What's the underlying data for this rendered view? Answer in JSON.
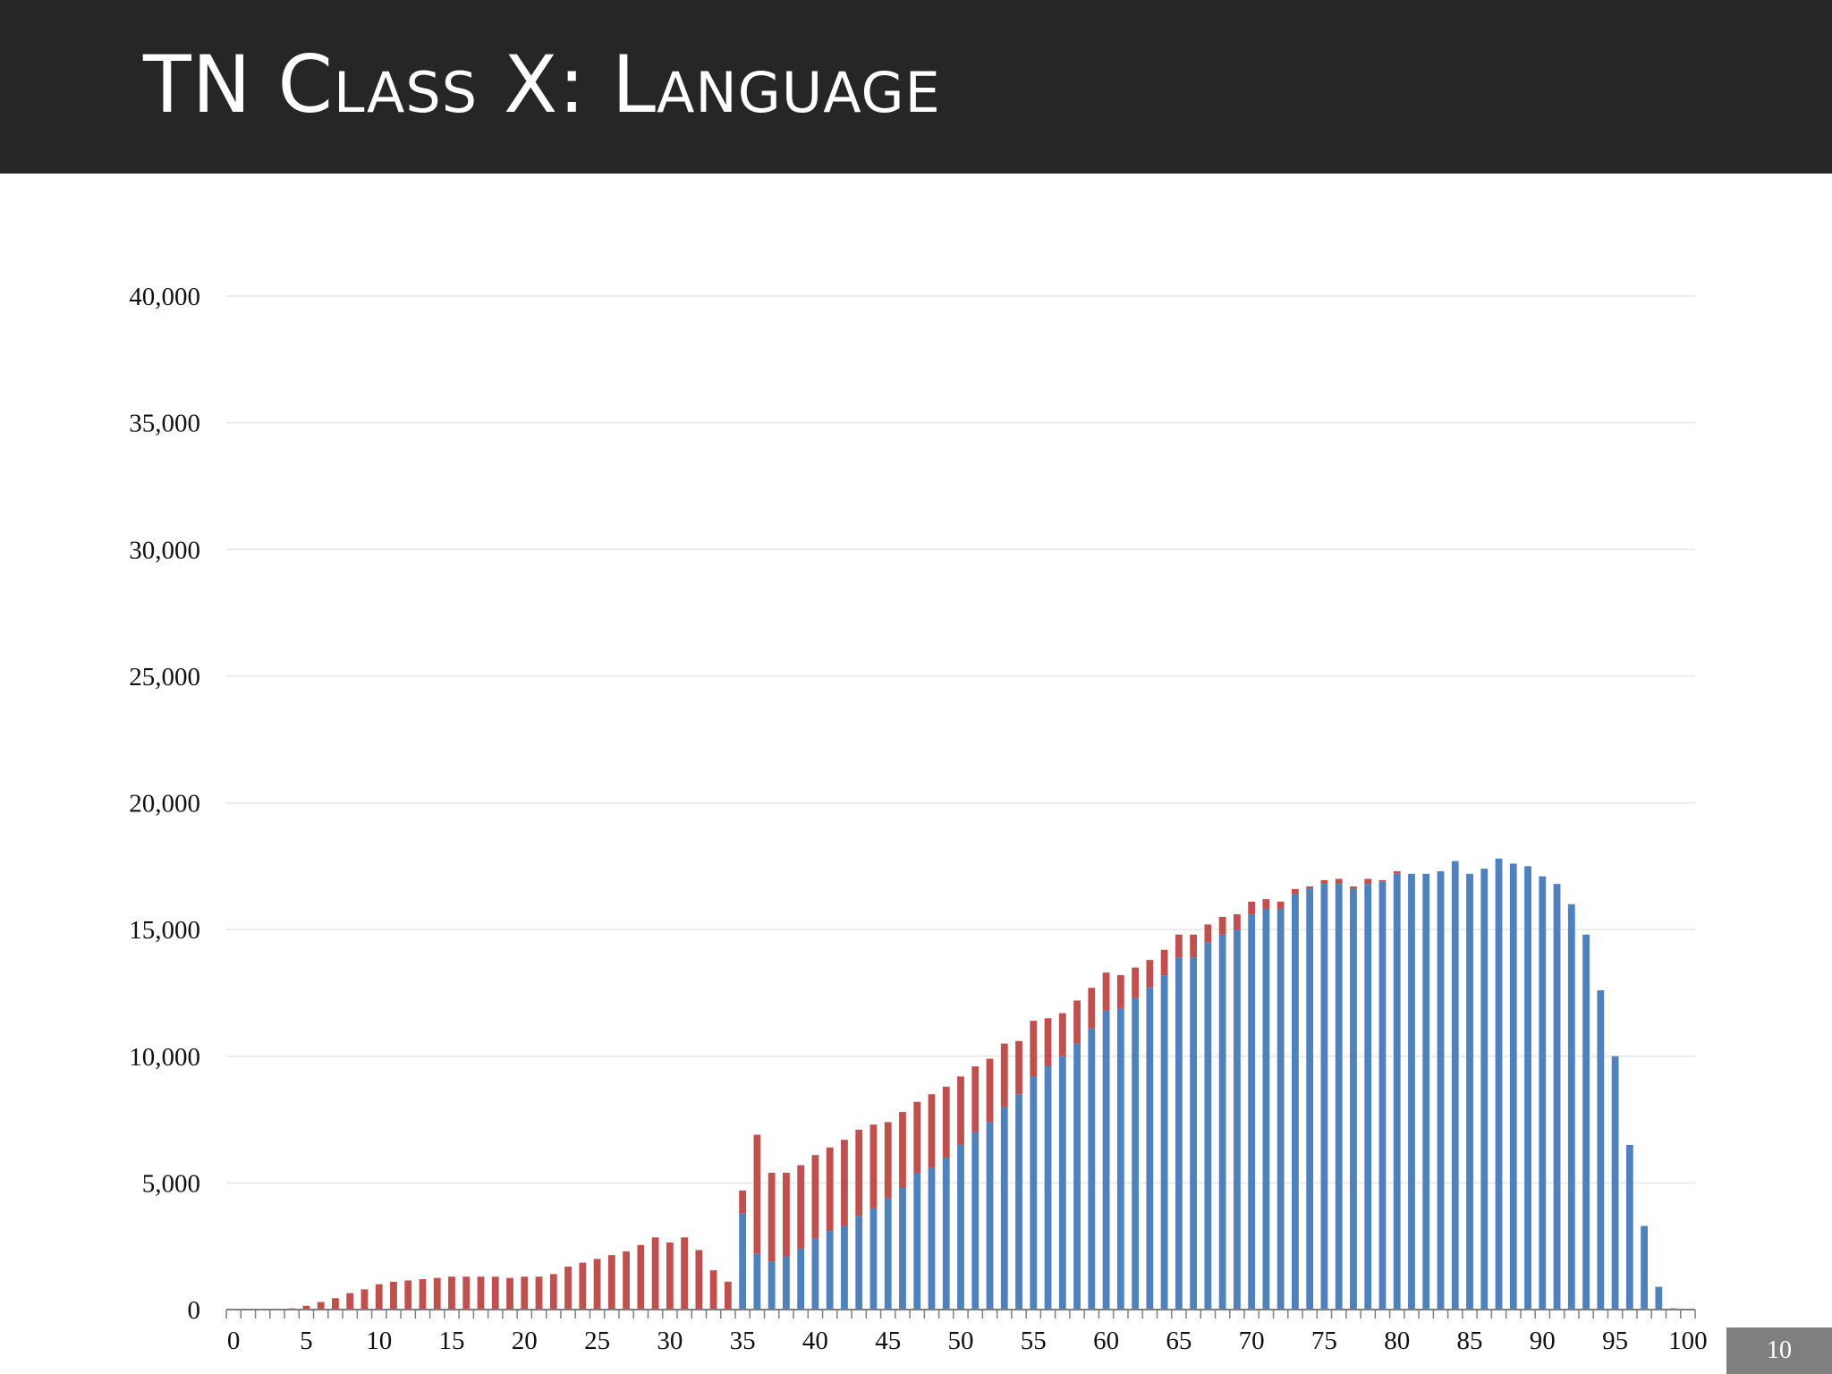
{
  "header": {
    "title": "TN Class X: Language"
  },
  "page_number": "10",
  "colors": {
    "header_bg": "#262626",
    "series_blue": "#4F81BD",
    "series_red": "#C0504D",
    "gridline": "#e6e6e6"
  },
  "chart_data": {
    "type": "bar",
    "stacked": true,
    "x": [
      0,
      1,
      2,
      3,
      4,
      5,
      6,
      7,
      8,
      9,
      10,
      11,
      12,
      13,
      14,
      15,
      16,
      17,
      18,
      19,
      20,
      21,
      22,
      23,
      24,
      25,
      26,
      27,
      28,
      29,
      30,
      31,
      32,
      33,
      34,
      35,
      36,
      37,
      38,
      39,
      40,
      41,
      42,
      43,
      44,
      45,
      46,
      47,
      48,
      49,
      50,
      51,
      52,
      53,
      54,
      55,
      56,
      57,
      58,
      59,
      60,
      61,
      62,
      63,
      64,
      65,
      66,
      67,
      68,
      69,
      70,
      71,
      72,
      73,
      74,
      75,
      76,
      77,
      78,
      79,
      80,
      81,
      82,
      83,
      84,
      85,
      86,
      87,
      88,
      89,
      90,
      91,
      92,
      93,
      94,
      95,
      96,
      97,
      98,
      99,
      100
    ],
    "series": [
      {
        "color": "#4F81BD",
        "values": [
          0,
          0,
          0,
          0,
          0,
          0,
          0,
          0,
          0,
          0,
          0,
          0,
          0,
          0,
          0,
          0,
          0,
          0,
          0,
          0,
          0,
          0,
          0,
          0,
          0,
          0,
          0,
          0,
          0,
          0,
          0,
          0,
          0,
          0,
          0,
          3800,
          2200,
          1900,
          2100,
          2400,
          2800,
          3100,
          3300,
          3700,
          4000,
          4400,
          4800,
          5400,
          5600,
          6000,
          6500,
          7000,
          7400,
          8000,
          8500,
          9200,
          9600,
          10000,
          10500,
          11100,
          11800,
          11900,
          12300,
          12700,
          13200,
          13900,
          13900,
          14500,
          14800,
          15000,
          15600,
          15800,
          15800,
          16400,
          16600,
          16800,
          16800,
          16600,
          16800,
          16900,
          17200,
          17200,
          17200,
          17300,
          17700,
          17200,
          17400,
          17800,
          17600,
          17500,
          17100,
          16800,
          16000,
          14800,
          12600,
          10000,
          6500,
          3300,
          900,
          50,
          0
        ]
      },
      {
        "color": "#C0504D",
        "values": [
          0,
          0,
          0,
          0,
          50,
          150,
          300,
          450,
          650,
          800,
          1000,
          1100,
          1150,
          1200,
          1250,
          1300,
          1300,
          1300,
          1300,
          1250,
          1300,
          1300,
          1400,
          1700,
          1850,
          2000,
          2150,
          2300,
          2550,
          2850,
          2650,
          2850,
          2350,
          1550,
          1100,
          900,
          4700,
          3500,
          3300,
          3300,
          3300,
          3300,
          3400,
          3400,
          3300,
          3000,
          3000,
          2800,
          2900,
          2800,
          2700,
          2600,
          2500,
          2500,
          2100,
          2200,
          1900,
          1700,
          1700,
          1600,
          1500,
          1300,
          1200,
          1100,
          1000,
          900,
          900,
          700,
          700,
          600,
          500,
          400,
          300,
          200,
          100,
          150,
          200,
          100,
          200,
          50,
          100,
          0,
          0,
          0,
          0,
          0,
          0,
          0,
          0,
          0,
          0,
          0,
          0,
          0,
          0,
          0,
          0,
          0,
          0,
          0,
          0
        ]
      }
    ],
    "ylim": [
      0,
      40000
    ],
    "yticks": [
      0,
      5000,
      10000,
      15000,
      20000,
      25000,
      30000,
      35000,
      40000
    ],
    "ytick_labels": [
      "0",
      "5,000",
      "10,000",
      "15,000",
      "20,000",
      "25,000",
      "30,000",
      "35,000",
      "40,000"
    ],
    "xticks": [
      0,
      5,
      10,
      15,
      20,
      25,
      30,
      35,
      40,
      45,
      50,
      55,
      60,
      65,
      70,
      75,
      80,
      85,
      90,
      95,
      100
    ],
    "xtick_labels": [
      "0",
      "5",
      "10",
      "15",
      "20",
      "25",
      "30",
      "35",
      "40",
      "45",
      "50",
      "55",
      "60",
      "65",
      "70",
      "75",
      "80",
      "85",
      "90",
      "95",
      "100"
    ],
    "grid": true,
    "legend": "none"
  }
}
